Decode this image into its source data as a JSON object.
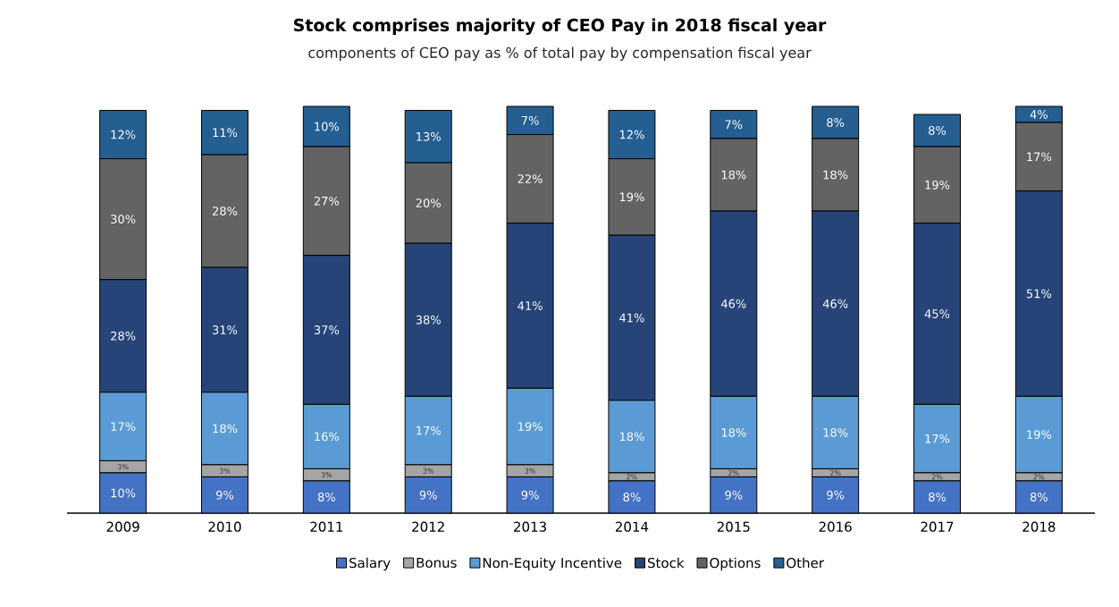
{
  "chart_data": {
    "type": "bar",
    "stacked": true,
    "title": "Stock comprises majority of CEO Pay in 2018 fiscal year",
    "subtitle": "components of CEO pay as % of total pay by compensation fiscal year",
    "categories": [
      "2009",
      "2010",
      "2011",
      "2012",
      "2013",
      "2014",
      "2015",
      "2016",
      "2017",
      "2018"
    ],
    "legend": "bottom",
    "series": [
      {
        "name": "Salary",
        "color": "#4472c4",
        "values": [
          10,
          9,
          8,
          9,
          9,
          8,
          9,
          9,
          8,
          8
        ],
        "value_labels": [
          "10%",
          "9%",
          "8%",
          "9%",
          "9%",
          "8%",
          "9%",
          "9%",
          "8%",
          "8%"
        ]
      },
      {
        "name": "Bonus",
        "color": "#a5a5a5",
        "values": [
          3,
          3,
          3,
          3,
          3,
          2,
          2,
          2,
          2,
          2
        ],
        "value_labels": [
          "3%",
          "3%",
          "3%",
          "3%",
          "3%",
          "2%",
          "2%",
          "2%",
          "2%",
          "2%"
        ]
      },
      {
        "name": "Non-Equity Incentive",
        "color": "#5b9bd5",
        "values": [
          17,
          18,
          16,
          17,
          19,
          18,
          18,
          18,
          17,
          19
        ],
        "value_labels": [
          "17%",
          "18%",
          "16%",
          "17%",
          "19%",
          "18%",
          "18%",
          "18%",
          "17%",
          "19%"
        ]
      },
      {
        "name": "Stock",
        "color": "#264478",
        "values": [
          28,
          31,
          37,
          38,
          41,
          41,
          46,
          46,
          45,
          51
        ],
        "value_labels": [
          "28%",
          "31%",
          "37%",
          "38%",
          "41%",
          "41%",
          "46%",
          "46%",
          "45%",
          "51%"
        ]
      },
      {
        "name": "Options",
        "color": "#636363",
        "values": [
          30,
          28,
          27,
          20,
          22,
          19,
          18,
          18,
          19,
          17
        ],
        "value_labels": [
          "30%",
          "28%",
          "27%",
          "20%",
          "22%",
          "19%",
          "18%",
          "18%",
          "19%",
          "17%"
        ]
      },
      {
        "name": "Other",
        "color": "#255e91",
        "values": [
          12,
          11,
          10,
          13,
          7,
          12,
          7,
          8,
          8,
          4
        ],
        "value_labels": [
          "12%",
          "11%",
          "10%",
          "13%",
          "7%",
          "12%",
          "7%",
          "8%",
          "8%",
          "4%"
        ]
      }
    ]
  }
}
